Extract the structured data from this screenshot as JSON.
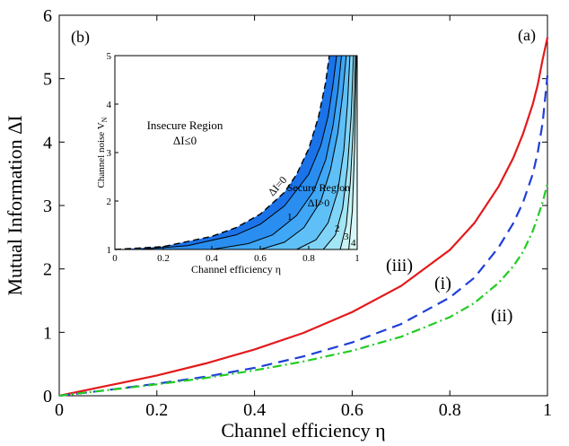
{
  "chart_data": [
    {
      "type": "line",
      "panel_label": "(a)",
      "xlabel": "Channel efficiency η",
      "ylabel": "Mutual Information  ΔI",
      "xlim": [
        0,
        1
      ],
      "ylim": [
        0,
        6
      ],
      "xticks": [
        "0",
        "0.2",
        "0.4",
        "0.6",
        "0.8",
        "1"
      ],
      "yticks": [
        "0",
        "1",
        "2",
        "3",
        "4",
        "5",
        "6"
      ],
      "grid": false,
      "legend": "none",
      "series": [
        {
          "name": "(iii)",
          "color": "#e41a1c",
          "style": "solid",
          "x": [
            0,
            0.1,
            0.2,
            0.3,
            0.4,
            0.5,
            0.6,
            0.7,
            0.8,
            0.85,
            0.9,
            0.93,
            0.95,
            0.97,
            0.98,
            0.99,
            1.0
          ],
          "y": [
            0,
            0.16,
            0.32,
            0.51,
            0.73,
            0.99,
            1.32,
            1.73,
            2.3,
            2.72,
            3.3,
            3.75,
            4.13,
            4.6,
            4.9,
            5.3,
            5.65
          ]
        },
        {
          "name": "(i)",
          "color": "#1f3fd8",
          "style": "dashed",
          "x": [
            0,
            0.1,
            0.2,
            0.3,
            0.4,
            0.5,
            0.6,
            0.7,
            0.8,
            0.85,
            0.9,
            0.93,
            0.95,
            0.97,
            0.98,
            0.99,
            1.0
          ],
          "y": [
            0,
            0.09,
            0.19,
            0.3,
            0.44,
            0.62,
            0.84,
            1.13,
            1.55,
            1.86,
            2.34,
            2.72,
            3.05,
            3.5,
            3.83,
            4.3,
            5.05
          ]
        },
        {
          "name": "(ii)",
          "color": "#22cc22",
          "style": "dashdot",
          "x": [
            0,
            0.1,
            0.2,
            0.3,
            0.4,
            0.5,
            0.6,
            0.7,
            0.8,
            0.85,
            0.9,
            0.93,
            0.95,
            0.97,
            0.98,
            0.99,
            1.0
          ],
          "y": [
            0,
            0.09,
            0.18,
            0.28,
            0.4,
            0.54,
            0.71,
            0.93,
            1.24,
            1.46,
            1.78,
            2.04,
            2.27,
            2.6,
            2.82,
            3.05,
            3.35
          ]
        }
      ]
    },
    {
      "type": "contour",
      "panel_label": "(b)",
      "xlabel": "Channel efficiency η",
      "ylabel": "Channel noise V_N",
      "xlim": [
        0,
        1
      ],
      "ylim": [
        1,
        5
      ],
      "xticks": [
        "0",
        "0.2",
        "0.4",
        "0.6",
        "0.8",
        "1"
      ],
      "yticks": [
        "1",
        "2",
        "3",
        "4",
        "5"
      ],
      "annotations": [
        "Insecure Region",
        "ΔI≤0",
        "Secure Region",
        "ΔI>0",
        "ΔI=0"
      ],
      "contour_labels": [
        "1",
        "2",
        "3",
        "4"
      ],
      "boundary_dI_0": {
        "x": [
          0,
          0.2,
          0.4,
          0.5,
          0.6,
          0.7,
          0.75,
          0.8,
          0.84,
          0.87,
          0.885
        ],
        "y": [
          1.0,
          1.06,
          1.27,
          1.45,
          1.73,
          2.18,
          2.55,
          3.08,
          3.73,
          4.45,
          5.0
        ]
      },
      "level_lines": [
        {
          "x": [
            0.1,
            0.3,
            0.5,
            0.6,
            0.7,
            0.8,
            0.85,
            0.88,
            0.9,
            0.915
          ],
          "y": [
            1.0,
            1.08,
            1.3,
            1.52,
            1.9,
            2.55,
            3.15,
            3.75,
            4.4,
            5.0
          ]
        },
        {
          "x": [
            0.4,
            0.55,
            0.65,
            0.75,
            0.82,
            0.87,
            0.9,
            0.92,
            0.935
          ],
          "y": [
            1.0,
            1.12,
            1.3,
            1.7,
            2.2,
            2.85,
            3.55,
            4.25,
            5.0
          ]
        },
        {
          "x": [
            0.6,
            0.7,
            0.78,
            0.85,
            0.89,
            0.92,
            0.94,
            0.955
          ],
          "y": [
            1.0,
            1.15,
            1.45,
            2.0,
            2.65,
            3.4,
            4.2,
            5.0
          ]
        },
        {
          "x": [
            0.75,
            0.83,
            0.88,
            0.92,
            0.945,
            0.96,
            0.97
          ],
          "y": [
            1.0,
            1.2,
            1.55,
            2.2,
            3.05,
            4.0,
            5.0
          ]
        },
        {
          "x": [
            0.86,
            0.91,
            0.94,
            0.96,
            0.975,
            0.985
          ],
          "y": [
            1.0,
            1.3,
            1.85,
            2.7,
            3.75,
            5.0
          ]
        },
        {
          "x": [
            0.93,
            0.955,
            0.972,
            0.985,
            0.993
          ],
          "y": [
            1.0,
            1.5,
            2.4,
            3.6,
            5.0
          ]
        },
        {
          "x": [
            0.965,
            0.98,
            0.99,
            0.997
          ],
          "y": [
            1.0,
            1.8,
            3.2,
            5.0
          ]
        }
      ],
      "fill_colors": [
        "#1a73e8",
        "#2a8ef0",
        "#3fa7f5",
        "#5fc0f7",
        "#7fd4f7",
        "#a3e6f5",
        "#c9f3f4"
      ]
    }
  ],
  "labels": {
    "series_iii": "(iii)",
    "series_i": "(i)",
    "series_ii": "(ii)",
    "panel_a": "(a)",
    "panel_b": "(b)",
    "main_xlabel": "Channel efficiency η",
    "main_ylabel": "Mutual Information  ΔI",
    "inset_xlabel": "Channel efficiency η",
    "inset_ylabel": "Channel noise V",
    "inset_ylabel_sub": "N",
    "insecure_title": "Insecure Region",
    "insecure_cond": "ΔI≤0",
    "secure_title": "Secure Region",
    "secure_cond": "ΔI>0",
    "boundary_label": "ΔI=0",
    "contour_1": "1",
    "contour_2": "2",
    "contour_3": "3",
    "contour_4": "4"
  }
}
